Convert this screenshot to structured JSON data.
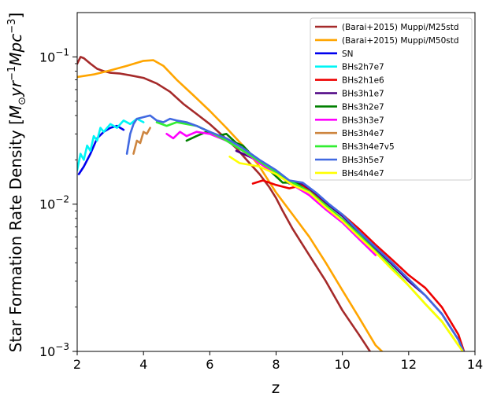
{
  "chart_data": {
    "type": "line",
    "xlabel": "z",
    "ylabel_parts": [
      "Star Formation Rate Density [",
      "M",
      "⊙",
      "yr",
      "−1",
      "Mpc",
      "−3",
      "]"
    ],
    "xlim": [
      2,
      14
    ],
    "ylim": [
      0.001,
      0.2
    ],
    "yscale": "log",
    "x_ticks": [
      2,
      4,
      6,
      8,
      10,
      12,
      14
    ],
    "x_tick_labels": [
      "2",
      "4",
      "6",
      "8",
      "10",
      "12",
      "14"
    ],
    "y_ticks": [
      0.001,
      0.01,
      0.1
    ],
    "y_tick_labels": [
      {
        "base": "10",
        "exp": "−3"
      },
      {
        "base": "10",
        "exp": "−2"
      },
      {
        "base": "10",
        "exp": "−1"
      }
    ],
    "grid": false,
    "legend_position": "top-right",
    "series": [
      {
        "name": "(Barai+2015) Muppi/M25std",
        "color": "#a52a2a",
        "x": [
          2.0,
          2.1,
          2.2,
          2.4,
          2.6,
          2.8,
          3.0,
          3.3,
          3.6,
          4.0,
          4.4,
          4.8,
          5.2,
          5.6,
          6.0,
          6.4,
          6.8,
          7.2,
          7.5,
          7.8,
          8.0,
          8.2,
          8.5,
          9.0,
          9.5,
          10.0,
          10.5,
          10.9
        ],
        "y": [
          0.09,
          0.1,
          0.098,
          0.09,
          0.083,
          0.08,
          0.078,
          0.077,
          0.075,
          0.072,
          0.066,
          0.058,
          0.048,
          0.041,
          0.035,
          0.029,
          0.024,
          0.019,
          0.016,
          0.013,
          0.011,
          0.009,
          0.0068,
          0.0045,
          0.003,
          0.0019,
          0.0013,
          0.00095
        ]
      },
      {
        "name": "(Barai+2015) Muppi/M50std",
        "color": "#ffa500",
        "x": [
          2.0,
          2.5,
          3.0,
          3.5,
          4.0,
          4.3,
          4.6,
          5.0,
          5.5,
          6.0,
          6.5,
          7.0,
          7.5,
          8.0,
          8.5,
          9.0,
          9.5,
          10.0,
          10.5,
          11.0,
          11.3
        ],
        "y": [
          0.073,
          0.076,
          0.081,
          0.087,
          0.094,
          0.095,
          0.087,
          0.07,
          0.055,
          0.043,
          0.033,
          0.025,
          0.018,
          0.012,
          0.0085,
          0.006,
          0.004,
          0.0026,
          0.0017,
          0.0011,
          0.00095
        ]
      },
      {
        "name": "SN",
        "color": "#0000ee",
        "x": [
          2.05,
          2.2,
          2.4,
          2.6,
          2.8,
          3.0,
          3.2,
          3.4
        ],
        "y": [
          0.016,
          0.018,
          0.022,
          0.028,
          0.031,
          0.033,
          0.034,
          0.032
        ]
      },
      {
        "name": "BHs2h7e7",
        "color": "#00f5f5",
        "x": [
          2.0,
          2.1,
          2.2,
          2.3,
          2.4,
          2.5,
          2.6,
          2.7,
          2.8,
          3.0,
          3.2,
          3.4,
          3.6,
          3.8,
          4.0
        ],
        "y": [
          0.017,
          0.022,
          0.02,
          0.025,
          0.023,
          0.029,
          0.027,
          0.033,
          0.031,
          0.035,
          0.033,
          0.037,
          0.035,
          0.038,
          0.036
        ]
      },
      {
        "name": "BHs2h1e6",
        "color": "#ee0000",
        "x": [
          7.3,
          7.6,
          8.0,
          8.4,
          8.8,
          9.2,
          9.6,
          10.0,
          10.5,
          11.0,
          11.5,
          12.0,
          12.5,
          13.0,
          13.5,
          13.7
        ],
        "y": [
          0.0138,
          0.0145,
          0.0135,
          0.0128,
          0.0135,
          0.0115,
          0.0098,
          0.0085,
          0.0068,
          0.0053,
          0.0042,
          0.0033,
          0.0027,
          0.002,
          0.0013,
          0.00095
        ]
      },
      {
        "name": "BHs3h1e7",
        "color": "#4b0082",
        "x": [
          6.8,
          7.2,
          7.6,
          8.0,
          8.4,
          8.8,
          9.2,
          9.6,
          10.0,
          10.5,
          11.0,
          11.5,
          12.0,
          12.5,
          13.0,
          13.5,
          13.7
        ],
        "y": [
          0.023,
          0.021,
          0.019,
          0.0165,
          0.0138,
          0.0138,
          0.0118,
          0.0098,
          0.0083,
          0.0064,
          0.005,
          0.0039,
          0.003,
          0.0024,
          0.0018,
          0.0012,
          0.00095
        ]
      },
      {
        "name": "BHs3h2e7",
        "color": "#008000",
        "x": [
          5.3,
          5.6,
          5.9,
          6.2,
          6.5,
          6.8,
          7.0,
          7.4,
          7.8,
          8.2,
          8.6,
          9.0
        ],
        "y": [
          0.027,
          0.029,
          0.031,
          0.029,
          0.03,
          0.026,
          0.025,
          0.02,
          0.017,
          0.014,
          0.014,
          0.012
        ]
      },
      {
        "name": "BHs3h3e7",
        "color": "#ff00ff",
        "x": [
          4.7,
          4.9,
          5.1,
          5.3,
          5.6,
          6.0,
          6.5,
          7.0,
          7.5,
          8.0,
          8.5,
          9.0,
          9.5,
          10.0,
          10.5,
          11.0
        ],
        "y": [
          0.03,
          0.028,
          0.031,
          0.029,
          0.031,
          0.03,
          0.027,
          0.023,
          0.019,
          0.016,
          0.0135,
          0.0115,
          0.0092,
          0.0075,
          0.0058,
          0.0045
        ]
      },
      {
        "name": "BHs3h4e7",
        "color": "#cd853f",
        "x": [
          3.7,
          3.8,
          3.9,
          4.0,
          4.1,
          4.2
        ],
        "y": [
          0.022,
          0.027,
          0.026,
          0.031,
          0.03,
          0.033
        ]
      },
      {
        "name": "BHs3h4e7v5",
        "color": "#32ee32",
        "x": [
          4.4,
          4.7,
          5.0,
          5.3,
          5.6,
          6.0,
          6.5,
          7.0,
          7.5,
          8.0,
          8.5,
          9.0,
          9.5,
          10.0,
          10.5,
          11.0,
          11.5,
          12.0,
          12.5,
          13.0,
          13.5
        ],
        "y": [
          0.036,
          0.034,
          0.036,
          0.035,
          0.034,
          0.031,
          0.027,
          0.023,
          0.0195,
          0.0165,
          0.014,
          0.0122,
          0.0098,
          0.0079,
          0.0062,
          0.0048,
          0.0037,
          0.0028,
          0.0021,
          0.0016,
          0.0011
        ]
      },
      {
        "name": "BHs3h5e7",
        "color": "#4169e1",
        "x": [
          3.5,
          3.6,
          3.7,
          3.8,
          4.0,
          4.2,
          4.4,
          4.6,
          4.8,
          5.0,
          5.3,
          5.6,
          6.0,
          6.5,
          7.0,
          7.5,
          8.0,
          8.4,
          8.8,
          9.2,
          9.6,
          10.0,
          10.5,
          11.0,
          11.5,
          12.0,
          12.5,
          13.0,
          13.5,
          13.7
        ],
        "y": [
          0.022,
          0.03,
          0.035,
          0.038,
          0.039,
          0.04,
          0.037,
          0.036,
          0.038,
          0.037,
          0.036,
          0.034,
          0.031,
          0.028,
          0.024,
          0.02,
          0.017,
          0.0145,
          0.014,
          0.012,
          0.01,
          0.0085,
          0.0065,
          0.0051,
          0.004,
          0.0031,
          0.0024,
          0.0018,
          0.0012,
          0.00095
        ]
      },
      {
        "name": "BHs4h4e7",
        "color": "#ffff00",
        "x": [
          6.6,
          6.9,
          7.2,
          7.5,
          8.0,
          8.5,
          9.0,
          9.5,
          10.0,
          10.5,
          11.0,
          11.5,
          12.0,
          12.5,
          13.0,
          13.5,
          13.7
        ],
        "y": [
          0.021,
          0.019,
          0.0185,
          0.018,
          0.016,
          0.0135,
          0.012,
          0.0095,
          0.0077,
          0.006,
          0.0047,
          0.0036,
          0.0028,
          0.0021,
          0.0016,
          0.0011,
          0.00095
        ]
      }
    ]
  }
}
